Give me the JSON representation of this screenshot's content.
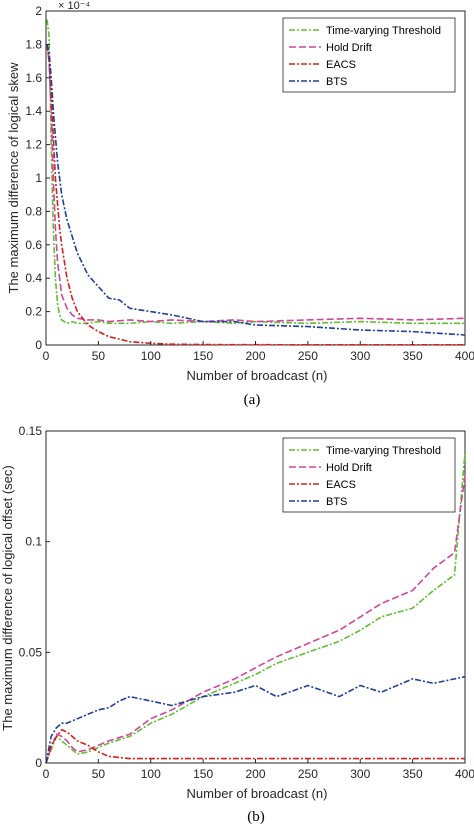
{
  "chart_data": [
    {
      "type": "line",
      "caption": "(a)",
      "xlabel": "Number of broadcast (n)",
      "ylabel": "The maximum difference of logical skew",
      "y_exponent_label": "× 10⁻⁴",
      "xlim": [
        0,
        400
      ],
      "ylim": [
        0,
        0.0002
      ],
      "xticks": [
        "0",
        "50",
        "100",
        "150",
        "200",
        "250",
        "300",
        "350",
        "400"
      ],
      "yticks": [
        "0",
        "0.2",
        "0.4",
        "0.6",
        "0.8",
        "1",
        "1.2",
        "1.4",
        "1.6",
        "1.8",
        "2"
      ],
      "legend_position": "top-right",
      "grid": false,
      "series": [
        {
          "name": "Time-varying Threshold",
          "color": "#5fbf2f",
          "x": [
            1,
            3,
            5,
            7,
            9,
            11,
            13,
            15,
            20,
            25,
            30,
            40,
            50,
            60,
            80,
            100,
            120,
            150,
            180,
            200,
            250,
            300,
            350,
            400
          ],
          "y": [
            0.000195,
            0.000185,
            0.00012,
            7e-05,
            4e-05,
            2.5e-05,
            1.8e-05,
            1.5e-05,
            1.3e-05,
            1.4e-05,
            1.3e-05,
            1.3e-05,
            1.4e-05,
            1.3e-05,
            1.3e-05,
            1.4e-05,
            1.3e-05,
            1.4e-05,
            1.3e-05,
            1.4e-05,
            1.3e-05,
            1.4e-05,
            1.3e-05,
            1.3e-05
          ]
        },
        {
          "name": "Hold Drift",
          "color": "#d0479a",
          "x": [
            1,
            3,
            5,
            7,
            9,
            11,
            13,
            15,
            20,
            25,
            30,
            40,
            50,
            60,
            80,
            100,
            120,
            150,
            180,
            200,
            250,
            300,
            350,
            400
          ],
          "y": [
            0.00018,
            0.00017,
            0.00014,
            0.0001,
            7e-05,
            5e-05,
            4e-05,
            3e-05,
            2.2e-05,
            1.8e-05,
            1.6e-05,
            1.5e-05,
            1.5e-05,
            1.4e-05,
            1.5e-05,
            1.4e-05,
            1.5e-05,
            1.4e-05,
            1.5e-05,
            1.4e-05,
            1.5e-05,
            1.6e-05,
            1.5e-05,
            1.6e-05
          ]
        },
        {
          "name": "EACS",
          "color": "#d62020",
          "x": [
            1,
            3,
            5,
            7,
            9,
            11,
            13,
            15,
            20,
            25,
            30,
            40,
            50,
            60,
            80,
            100,
            120,
            150,
            180,
            200,
            250,
            300,
            350,
            400
          ],
          "y": [
            0.00018,
            0.00017,
            0.00015,
            0.000125,
            0.0001,
            8.5e-05,
            7e-05,
            6e-05,
            4e-05,
            2.8e-05,
            2e-05,
            1.2e-05,
            8e-06,
            5e-06,
            2e-06,
            1e-06,
            5e-07,
            3e-07,
            2e-07,
            2e-07,
            1e-07,
            1e-07,
            1e-07,
            1e-07
          ]
        },
        {
          "name": "BTS",
          "color": "#1f3f9c",
          "x": [
            1,
            3,
            5,
            7,
            9,
            11,
            13,
            15,
            20,
            25,
            30,
            40,
            50,
            60,
            70,
            80,
            100,
            120,
            150,
            180,
            200,
            250,
            300,
            350,
            400
          ],
          "y": [
            0.00018,
            0.000175,
            0.00016,
            0.00014,
            0.000125,
            0.00011,
            0.0001,
            9e-05,
            7.5e-05,
            6.5e-05,
            5.5e-05,
            4.2e-05,
            3.5e-05,
            2.8e-05,
            2.7e-05,
            2.2e-05,
            2e-05,
            1.8e-05,
            1.4e-05,
            1.4e-05,
            1.2e-05,
            1.1e-05,
            9e-06,
            8e-06,
            6e-06
          ]
        }
      ]
    },
    {
      "type": "line",
      "caption": "(b)",
      "xlabel": "Number of broadcast (n)",
      "ylabel": "The maximum difference of logical offset (sec)",
      "xlim": [
        0,
        400
      ],
      "ylim": [
        0,
        0.15
      ],
      "xticks": [
        "0",
        "50",
        "100",
        "150",
        "200",
        "250",
        "300",
        "350",
        "400"
      ],
      "yticks": [
        "0",
        "0.05",
        "0.1",
        "0.15"
      ],
      "legend_position": "top-right",
      "grid": false,
      "series": [
        {
          "name": "Time-varying Threshold",
          "color": "#5fbf2f",
          "x": [
            0,
            5,
            10,
            15,
            20,
            25,
            30,
            40,
            50,
            60,
            80,
            100,
            120,
            150,
            180,
            200,
            220,
            250,
            280,
            300,
            320,
            350,
            370,
            390,
            400
          ],
          "y": [
            0,
            0.006,
            0.012,
            0.01,
            0.008,
            0.006,
            0.004,
            0.005,
            0.007,
            0.009,
            0.012,
            0.018,
            0.022,
            0.03,
            0.036,
            0.04,
            0.045,
            0.05,
            0.055,
            0.06,
            0.066,
            0.07,
            0.078,
            0.085,
            0.14
          ]
        },
        {
          "name": "Hold Drift",
          "color": "#d0479a",
          "x": [
            0,
            5,
            10,
            15,
            20,
            25,
            30,
            40,
            50,
            60,
            80,
            100,
            120,
            150,
            180,
            200,
            220,
            250,
            280,
            300,
            320,
            350,
            370,
            390,
            400
          ],
          "y": [
            0,
            0.007,
            0.013,
            0.012,
            0.01,
            0.007,
            0.005,
            0.006,
            0.008,
            0.01,
            0.013,
            0.02,
            0.024,
            0.032,
            0.038,
            0.043,
            0.048,
            0.054,
            0.06,
            0.066,
            0.072,
            0.078,
            0.088,
            0.095,
            0.13
          ]
        },
        {
          "name": "EACS",
          "color": "#d62020",
          "x": [
            0,
            5,
            10,
            15,
            20,
            25,
            30,
            40,
            50,
            60,
            80,
            100,
            150,
            200,
            250,
            300,
            350,
            400
          ],
          "y": [
            0,
            0.008,
            0.012,
            0.015,
            0.014,
            0.012,
            0.01,
            0.008,
            0.005,
            0.003,
            0.002,
            0.002,
            0.002,
            0.002,
            0.002,
            0.002,
            0.002,
            0.002
          ]
        },
        {
          "name": "BTS",
          "color": "#1f3f9c",
          "x": [
            0,
            5,
            10,
            15,
            20,
            25,
            30,
            40,
            50,
            60,
            70,
            80,
            100,
            120,
            150,
            180,
            200,
            220,
            250,
            280,
            300,
            320,
            350,
            370,
            390,
            400
          ],
          "y": [
            0,
            0.012,
            0.016,
            0.018,
            0.018,
            0.019,
            0.02,
            0.022,
            0.024,
            0.025,
            0.028,
            0.03,
            0.028,
            0.026,
            0.03,
            0.032,
            0.035,
            0.03,
            0.035,
            0.03,
            0.035,
            0.032,
            0.038,
            0.036,
            0.038,
            0.039
          ]
        }
      ]
    }
  ]
}
